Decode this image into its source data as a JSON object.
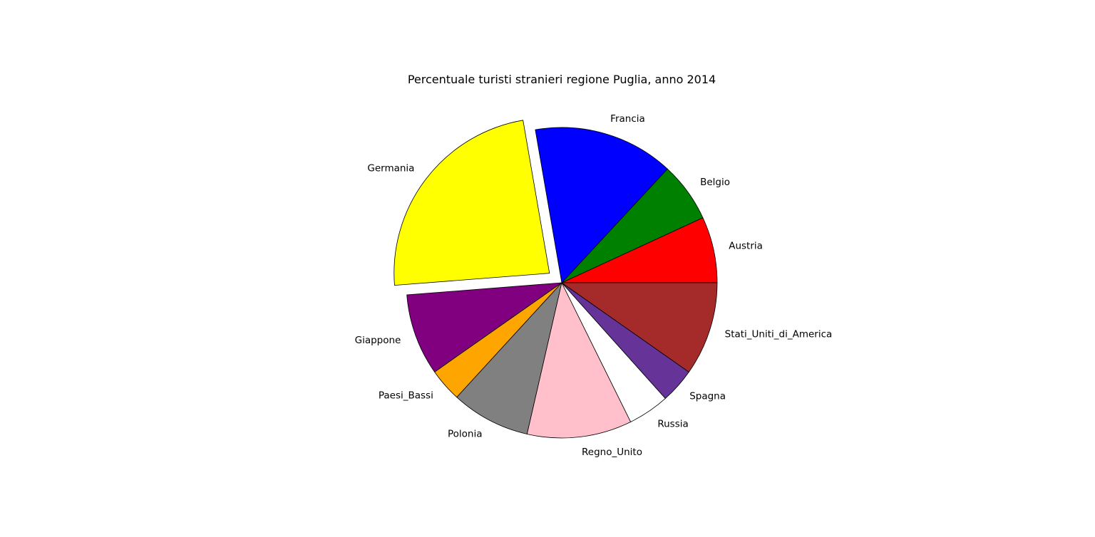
{
  "chart_data": {
    "type": "pie",
    "title": "Percentuale turisti stranieri regione Puglia, anno 2014",
    "start_angle_deg": 0,
    "direction": "counterclockwise",
    "exploded": "Germania",
    "slices": [
      {
        "label": "Austria",
        "value": 7.2,
        "color": "#ff0000"
      },
      {
        "label": "Belgio",
        "value": 6.5,
        "color": "#008000"
      },
      {
        "label": "Francia",
        "value": 15.3,
        "color": "#0000ff"
      },
      {
        "label": "Germania",
        "value": 24.6,
        "color": "#ffff00"
      },
      {
        "label": "Giappone",
        "value": 8.9,
        "color": "#800080"
      },
      {
        "label": "Paesi_Bassi",
        "value": 3.6,
        "color": "#ffa500"
      },
      {
        "label": "Polonia",
        "value": 8.6,
        "color": "#808080"
      },
      {
        "label": "Regno_Unito",
        "value": 11.4,
        "color": "#ffc0cb"
      },
      {
        "label": "Russia",
        "value": 4.5,
        "color": "#ffffff"
      },
      {
        "label": "Spagna",
        "value": 3.8,
        "color": "#663399"
      },
      {
        "label": "Stati_Uniti_di_America",
        "value": 10.2,
        "color": "#a52a2a"
      }
    ]
  }
}
